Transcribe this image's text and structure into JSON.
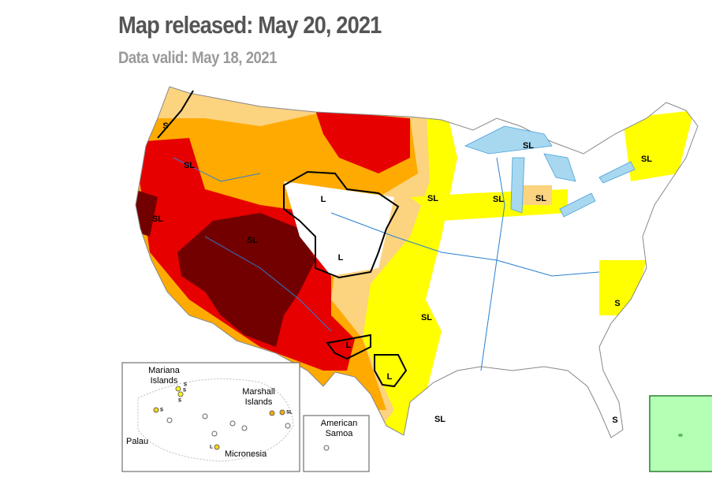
{
  "header": {
    "title": "Map released: May 20, 2021",
    "subtitle": "Data valid: May 18, 2021"
  },
  "map": {
    "labels": [
      "S",
      "SL",
      "SL",
      "SL",
      "L",
      "L",
      "SL",
      "SL",
      "SL",
      "SL",
      "SL",
      "SL",
      "L",
      "L",
      "SL",
      "S",
      "S"
    ]
  },
  "insets": {
    "pacific": {
      "labels": [
        "Mariana Islands",
        "Marshall Islands",
        "Palau",
        "Micronesia"
      ],
      "markers": [
        "S",
        "S",
        "S",
        "S",
        "SL",
        "L"
      ]
    },
    "samoa": {
      "label": "American Samoa"
    }
  }
}
